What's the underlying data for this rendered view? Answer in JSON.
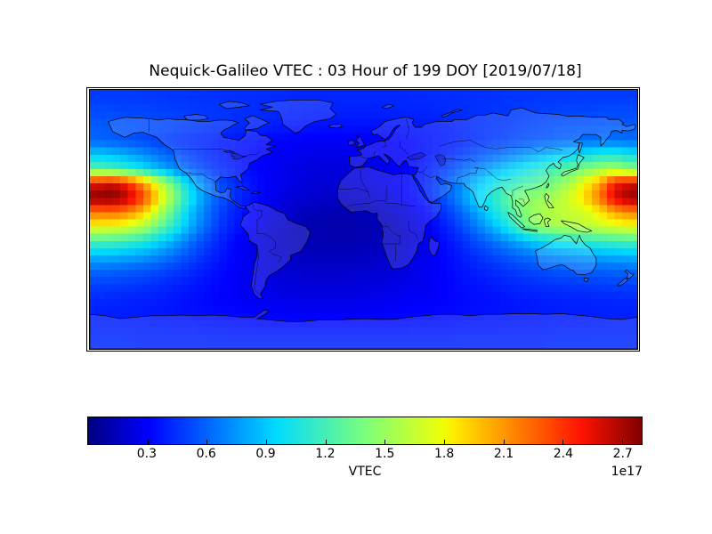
{
  "chart_data": {
    "type": "heatmap",
    "title": "Nequick-Galileo VTEC : 03 Hour of 199 DOY [2019/07/18]",
    "description": "Global VTEC map on equirectangular world projection (lon -180..180, lat -90..90) with coastlines and country borders overlaid; pcolor grid of ~5 deg cells, jet colormap",
    "colorbar": {
      "label": "VTEC",
      "offset_label": "1e17",
      "ticks": [
        "0.3",
        "0.6",
        "0.9",
        "1.2",
        "1.5",
        "1.8",
        "2.1",
        "2.4",
        "2.7"
      ],
      "vmin": 0.0,
      "vmax": 2.8,
      "orientation": "horizontal"
    },
    "colormap": "jet",
    "colormap_stops": [
      [
        0.0,
        "#000080"
      ],
      [
        0.11,
        "#0000ff"
      ],
      [
        0.34,
        "#00dbff"
      ],
      [
        0.5,
        "#7bff7b"
      ],
      [
        0.64,
        "#eeff08"
      ],
      [
        0.66,
        "#ffec00"
      ],
      [
        0.75,
        "#ff9700"
      ],
      [
        0.89,
        "#ff1300"
      ],
      [
        1.0,
        "#800000"
      ]
    ],
    "grid": {
      "units": "1e17 el/m^2 (VTEC)",
      "lon_start": -175,
      "lon_step": 10,
      "lat_start": 85,
      "lat_step": -10,
      "values": [
        [
          0.48,
          0.48,
          0.48,
          0.47,
          0.47,
          0.46,
          0.46,
          0.45,
          0.45,
          0.44,
          0.44,
          0.43,
          0.43,
          0.42,
          0.42,
          0.42,
          0.42,
          0.42,
          0.42,
          0.42,
          0.42,
          0.43,
          0.43,
          0.44,
          0.44,
          0.45,
          0.45,
          0.46,
          0.46,
          0.47,
          0.47,
          0.47,
          0.48,
          0.48,
          0.48,
          0.48
        ],
        [
          0.52,
          0.52,
          0.51,
          0.51,
          0.5,
          0.49,
          0.48,
          0.47,
          0.46,
          0.45,
          0.44,
          0.43,
          0.42,
          0.41,
          0.4,
          0.4,
          0.4,
          0.4,
          0.4,
          0.4,
          0.41,
          0.41,
          0.42,
          0.43,
          0.44,
          0.45,
          0.46,
          0.47,
          0.48,
          0.49,
          0.5,
          0.51,
          0.51,
          0.52,
          0.52,
          0.52
        ],
        [
          0.58,
          0.57,
          0.56,
          0.55,
          0.54,
          0.52,
          0.5,
          0.48,
          0.46,
          0.44,
          0.42,
          0.4,
          0.38,
          0.37,
          0.36,
          0.35,
          0.35,
          0.35,
          0.35,
          0.36,
          0.36,
          0.37,
          0.38,
          0.4,
          0.42,
          0.44,
          0.46,
          0.48,
          0.5,
          0.52,
          0.54,
          0.55,
          0.56,
          0.57,
          0.58,
          0.58
        ],
        [
          0.6,
          0.58,
          0.55,
          0.52,
          0.49,
          0.46,
          0.43,
          0.41,
          0.39,
          0.37,
          0.35,
          0.33,
          0.31,
          0.3,
          0.29,
          0.29,
          0.29,
          0.29,
          0.3,
          0.31,
          0.32,
          0.34,
          0.36,
          0.38,
          0.41,
          0.44,
          0.47,
          0.5,
          0.53,
          0.56,
          0.58,
          0.6,
          0.62,
          0.63,
          0.64,
          0.62
        ],
        [
          0.9,
          0.86,
          0.8,
          0.73,
          0.65,
          0.57,
          0.5,
          0.44,
          0.4,
          0.36,
          0.33,
          0.3,
          0.28,
          0.27,
          0.26,
          0.25,
          0.25,
          0.26,
          0.27,
          0.28,
          0.3,
          0.33,
          0.37,
          0.42,
          0.48,
          0.54,
          0.6,
          0.67,
          0.74,
          0.81,
          0.88,
          0.94,
          1.0,
          1.05,
          1.08,
          1.0
        ],
        [
          1.25,
          1.2,
          1.1,
          0.98,
          0.85,
          0.72,
          0.6,
          0.51,
          0.44,
          0.38,
          0.33,
          0.29,
          0.27,
          0.25,
          0.23,
          0.22,
          0.22,
          0.23,
          0.25,
          0.27,
          0.3,
          0.35,
          0.42,
          0.5,
          0.6,
          0.7,
          0.8,
          0.91,
          1.01,
          1.1,
          1.2,
          1.3,
          1.4,
          1.5,
          1.55,
          1.4
        ],
        [
          2.55,
          2.62,
          2.45,
          2.1,
          1.7,
          1.3,
          0.95,
          0.7,
          0.54,
          0.44,
          0.37,
          0.31,
          0.27,
          0.24,
          0.22,
          0.21,
          0.21,
          0.22,
          0.24,
          0.27,
          0.31,
          0.37,
          0.46,
          0.58,
          0.72,
          0.88,
          1.02,
          1.12,
          1.2,
          1.28,
          1.38,
          1.55,
          1.78,
          2.05,
          2.5,
          2.6
        ],
        [
          2.78,
          2.8,
          2.68,
          2.35,
          1.92,
          1.45,
          1.05,
          0.76,
          0.57,
          0.45,
          0.37,
          0.3,
          0.25,
          0.21,
          0.19,
          0.17,
          0.17,
          0.18,
          0.2,
          0.23,
          0.28,
          0.35,
          0.45,
          0.58,
          0.76,
          0.95,
          1.1,
          1.3,
          1.45,
          1.5,
          1.55,
          1.7,
          1.9,
          2.2,
          2.6,
          2.75
        ],
        [
          2.2,
          2.22,
          2.15,
          1.95,
          1.62,
          1.25,
          0.92,
          0.68,
          0.51,
          0.4,
          0.32,
          0.26,
          0.21,
          0.17,
          0.14,
          0.13,
          0.12,
          0.13,
          0.14,
          0.17,
          0.21,
          0.27,
          0.36,
          0.48,
          0.62,
          0.8,
          1.0,
          1.2,
          1.4,
          1.55,
          1.6,
          1.65,
          1.7,
          1.85,
          2.05,
          2.15
        ],
        [
          1.8,
          1.78,
          1.72,
          1.58,
          1.35,
          1.1,
          0.85,
          0.65,
          0.48,
          0.38,
          0.3,
          0.23,
          0.18,
          0.15,
          0.12,
          0.11,
          0.1,
          0.11,
          0.12,
          0.14,
          0.18,
          0.23,
          0.31,
          0.41,
          0.53,
          0.68,
          0.85,
          1.05,
          1.3,
          1.5,
          1.55,
          1.6,
          1.62,
          1.68,
          1.73,
          1.78
        ],
        [
          1.22,
          1.2,
          1.16,
          1.08,
          0.96,
          0.81,
          0.66,
          0.52,
          0.41,
          0.32,
          0.26,
          0.21,
          0.17,
          0.14,
          0.13,
          0.12,
          0.12,
          0.12,
          0.13,
          0.15,
          0.18,
          0.22,
          0.28,
          0.35,
          0.44,
          0.54,
          0.64,
          0.74,
          0.84,
          0.94,
          1.01,
          1.06,
          1.11,
          1.15,
          1.18,
          1.21
        ],
        [
          0.86,
          0.85,
          0.82,
          0.78,
          0.72,
          0.63,
          0.54,
          0.45,
          0.38,
          0.31,
          0.26,
          0.22,
          0.19,
          0.17,
          0.15,
          0.15,
          0.15,
          0.15,
          0.16,
          0.18,
          0.2,
          0.24,
          0.28,
          0.33,
          0.39,
          0.45,
          0.51,
          0.57,
          0.63,
          0.68,
          0.72,
          0.75,
          0.78,
          0.81,
          0.83,
          0.85
        ],
        [
          0.62,
          0.61,
          0.59,
          0.57,
          0.53,
          0.49,
          0.44,
          0.39,
          0.34,
          0.3,
          0.26,
          0.23,
          0.2,
          0.19,
          0.18,
          0.18,
          0.18,
          0.19,
          0.2,
          0.21,
          0.23,
          0.26,
          0.29,
          0.32,
          0.36,
          0.4,
          0.43,
          0.47,
          0.5,
          0.53,
          0.56,
          0.58,
          0.59,
          0.6,
          0.61,
          0.62
        ],
        [
          0.5,
          0.49,
          0.48,
          0.46,
          0.44,
          0.41,
          0.38,
          0.35,
          0.32,
          0.29,
          0.27,
          0.25,
          0.23,
          0.22,
          0.21,
          0.21,
          0.21,
          0.22,
          0.23,
          0.24,
          0.25,
          0.27,
          0.29,
          0.31,
          0.34,
          0.36,
          0.39,
          0.41,
          0.43,
          0.45,
          0.46,
          0.47,
          0.48,
          0.49,
          0.5,
          0.5
        ],
        [
          0.43,
          0.42,
          0.41,
          0.4,
          0.39,
          0.37,
          0.35,
          0.33,
          0.31,
          0.3,
          0.28,
          0.27,
          0.26,
          0.25,
          0.25,
          0.25,
          0.25,
          0.25,
          0.26,
          0.27,
          0.28,
          0.29,
          0.3,
          0.31,
          0.33,
          0.34,
          0.35,
          0.37,
          0.38,
          0.39,
          0.4,
          0.41,
          0.41,
          0.42,
          0.42,
          0.43
        ],
        [
          0.4,
          0.39,
          0.39,
          0.38,
          0.37,
          0.36,
          0.35,
          0.34,
          0.33,
          0.32,
          0.31,
          0.3,
          0.3,
          0.29,
          0.29,
          0.29,
          0.29,
          0.29,
          0.3,
          0.3,
          0.31,
          0.32,
          0.32,
          0.33,
          0.34,
          0.35,
          0.36,
          0.36,
          0.37,
          0.38,
          0.38,
          0.39,
          0.39,
          0.4,
          0.4,
          0.4
        ],
        [
          0.41,
          0.41,
          0.4,
          0.4,
          0.4,
          0.39,
          0.39,
          0.38,
          0.38,
          0.37,
          0.37,
          0.36,
          0.36,
          0.36,
          0.36,
          0.36,
          0.36,
          0.36,
          0.36,
          0.36,
          0.36,
          0.37,
          0.37,
          0.37,
          0.38,
          0.38,
          0.38,
          0.39,
          0.39,
          0.39,
          0.4,
          0.4,
          0.4,
          0.41,
          0.41,
          0.41
        ],
        [
          0.43,
          0.43,
          0.43,
          0.42,
          0.42,
          0.42,
          0.42,
          0.42,
          0.41,
          0.41,
          0.41,
          0.41,
          0.41,
          0.41,
          0.41,
          0.41,
          0.41,
          0.41,
          0.41,
          0.41,
          0.41,
          0.41,
          0.41,
          0.41,
          0.42,
          0.42,
          0.42,
          0.42,
          0.42,
          0.42,
          0.43,
          0.43,
          0.43,
          0.43,
          0.43,
          0.43
        ]
      ]
    }
  }
}
